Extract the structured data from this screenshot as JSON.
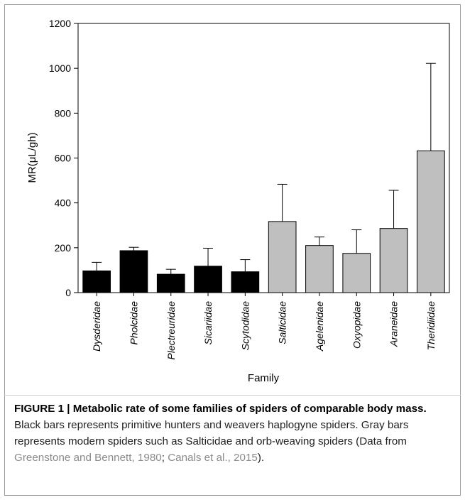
{
  "chart_data": {
    "type": "bar",
    "categories": [
      "Dysderidae",
      "Pholcidae",
      "Plectreuridae",
      "Sicariidae",
      "Scytodidae",
      "Salticidae",
      "Agelenidae",
      "Oxyopidae",
      "Araneidae",
      "Theridiidae"
    ],
    "values": [
      97,
      187,
      82,
      118,
      93,
      317,
      210,
      175,
      286,
      632
    ],
    "errors": [
      38,
      15,
      22,
      80,
      54,
      166,
      38,
      105,
      170,
      390
    ],
    "bar_colors": [
      "#000000",
      "#000000",
      "#000000",
      "#000000",
      "#000000",
      "#bfbfbf",
      "#bfbfbf",
      "#bfbfbf",
      "#bfbfbf",
      "#bfbfbf"
    ],
    "xlabel": "Family",
    "ylabel": "MR(μL/gh)",
    "ylim": [
      0,
      1200
    ],
    "yticks": [
      0,
      200,
      400,
      600,
      800,
      1000,
      1200
    ],
    "grid": false,
    "legend": "none"
  },
  "caption": {
    "lead": "FIGURE 1 | Metabolic rate of some families of spiders of comparable body mass.",
    "body1": " Black bars represents primitive hunters and weavers haplogyne spiders. Gray bars represents modern spiders such as Salticidae and orb-weaving spiders (Data from ",
    "ref1": "Greenstone and Bennett, 1980",
    "sep": "; ",
    "ref2": "Canals et al., 2015",
    "end": ")."
  }
}
